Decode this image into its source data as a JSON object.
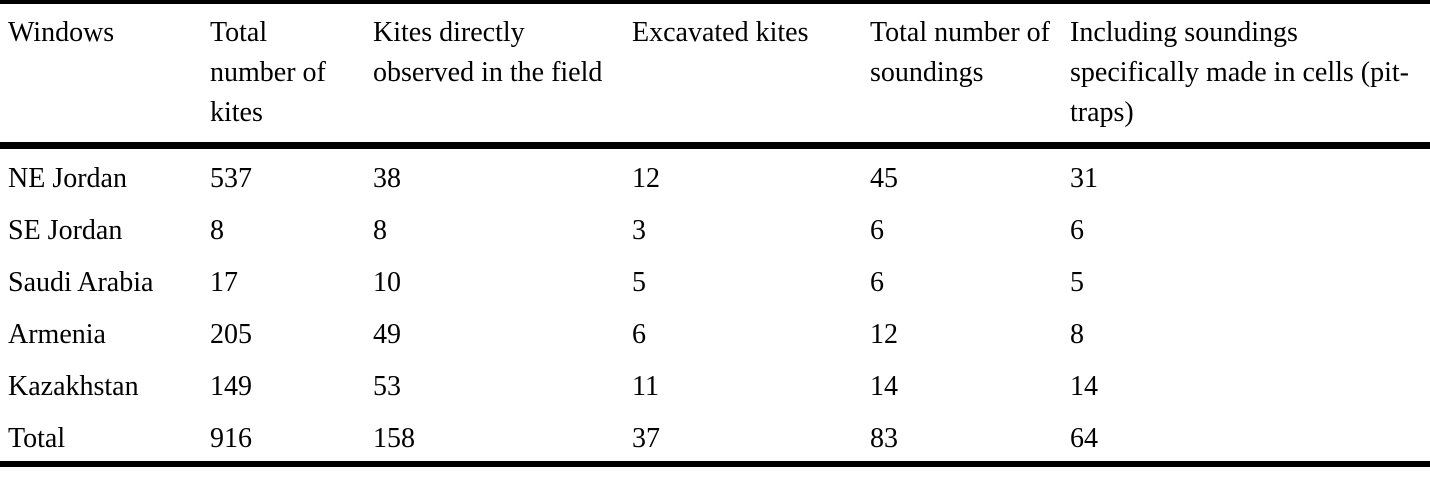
{
  "page": {
    "background_color": "#ffffff",
    "text_color": "#000000",
    "rule_color": "#000000"
  },
  "table": {
    "columns": [
      {
        "label": "Windows"
      },
      {
        "label": "Total number of kites"
      },
      {
        "label": "Kites directly observed in the field"
      },
      {
        "label": "Excavated kites"
      },
      {
        "label": "Total number of soundings"
      },
      {
        "label": "Including soundings specifically made in cells (pit-traps)"
      }
    ],
    "rows": [
      {
        "cells": [
          "NE Jordan",
          "537",
          "38",
          "12",
          "45",
          "31"
        ]
      },
      {
        "cells": [
          "SE Jordan",
          "8",
          "8",
          "3",
          "6",
          "6"
        ]
      },
      {
        "cells": [
          "Saudi Arabia",
          "17",
          "10",
          "5",
          "6",
          "5"
        ]
      },
      {
        "cells": [
          "Armenia",
          "205",
          "49",
          "6",
          "12",
          "8"
        ]
      },
      {
        "cells": [
          "Kazakhstan",
          "149",
          "53",
          "11",
          "14",
          "14"
        ]
      },
      {
        "cells": [
          "Total",
          "916",
          "158",
          "37",
          "83",
          "64"
        ]
      }
    ]
  },
  "chart_data": {
    "type": "table",
    "title": "",
    "columns": [
      "Windows",
      "Total number of kites",
      "Kites directly observed in the field",
      "Excavated kites",
      "Total number of soundings",
      "Including soundings specifically made in cells (pit-traps)"
    ],
    "rows": [
      [
        "NE Jordan",
        537,
        38,
        12,
        45,
        31
      ],
      [
        "SE Jordan",
        8,
        8,
        3,
        6,
        6
      ],
      [
        "Saudi Arabia",
        17,
        10,
        5,
        6,
        5
      ],
      [
        "Armenia",
        205,
        49,
        6,
        12,
        8
      ],
      [
        "Kazakhstan",
        149,
        53,
        11,
        14,
        14
      ],
      [
        "Total",
        916,
        158,
        37,
        83,
        64
      ]
    ]
  }
}
